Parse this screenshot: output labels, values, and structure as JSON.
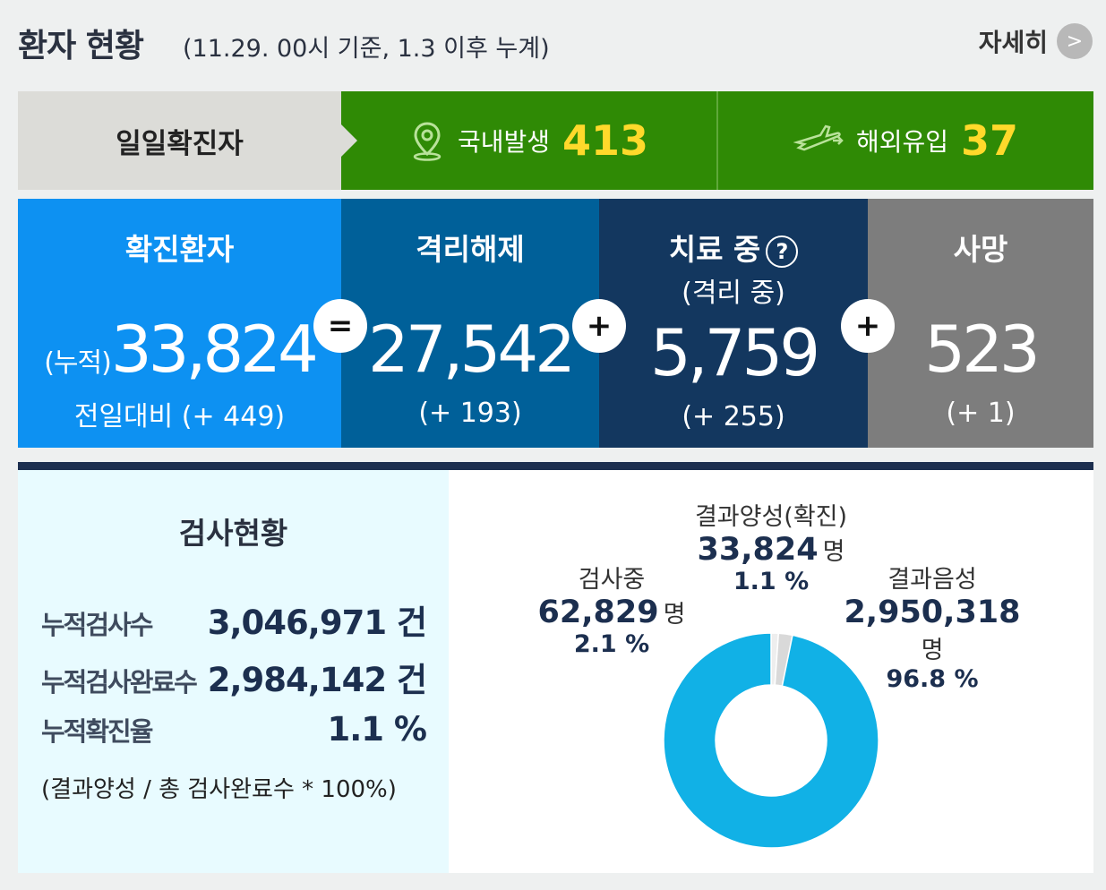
{
  "header": {
    "title": "환자 현황",
    "subtitle": "(11.29. 00시 기준, 1.3 이후 누계)",
    "more_label": "자세히",
    "more_icon": "chevron-right-icon",
    "more_chevron": ">"
  },
  "daily": {
    "label": "일일확진자",
    "domestic": {
      "label": "국내발생",
      "value": "413",
      "icon": "location-pin-icon"
    },
    "overseas": {
      "label": "해외유입",
      "value": "37",
      "icon": "airplane-icon"
    }
  },
  "colors": {
    "green": "#2f8a05",
    "yellow": "#ffd92b",
    "confirmed_blue": "#0d91f2",
    "released_blue": "#006099",
    "treatment_navy": "#13375f",
    "death_gray": "#7d7d7d",
    "donut_negative": "#11b1e6",
    "donut_testing": "#d9d9d9",
    "donut_positive": "#eeeeee"
  },
  "stats": {
    "confirmed": {
      "title": "확진환자",
      "prefix": "(누적)",
      "value": "33,824",
      "diff": "전일대비 (+ 449)"
    },
    "op_eq": "=",
    "released": {
      "title": "격리해제",
      "value": "27,542",
      "diff": "(+ 193)"
    },
    "op_plus1": "+",
    "treatment": {
      "title": "치료 중",
      "help": "?",
      "sub": "(격리 중)",
      "value": "5,759",
      "diff": "(+ 255)"
    },
    "op_plus2": "+",
    "death": {
      "title": "사망",
      "value": "523",
      "diff": "(+ 1)"
    }
  },
  "tests": {
    "title": "검사현황",
    "rows": [
      {
        "label": "누적검사수",
        "value": "3,046,971 건"
      },
      {
        "label": "누적검사완료수",
        "value": "2,984,142 건"
      },
      {
        "label": "누적확진율",
        "value": "1.1 %"
      }
    ],
    "note": "(결과양성 / 총 검사완료수 * 100%)"
  },
  "donut": {
    "positive": {
      "name": "결과양성(확진)",
      "count": "33,824",
      "unit": "명",
      "pct": "1.1 %"
    },
    "testing": {
      "name": "검사중",
      "count": "62,829",
      "unit": "명",
      "pct": "2.1 %"
    },
    "negative": {
      "name": "결과음성",
      "count": "2,950,318",
      "unit": "명",
      "pct": "96.8 %"
    }
  },
  "chart_data": {
    "type": "pie",
    "categories": [
      "결과양성(확진)",
      "검사중",
      "결과음성"
    ],
    "values": [
      1.1,
      2.1,
      96.8
    ]
  }
}
